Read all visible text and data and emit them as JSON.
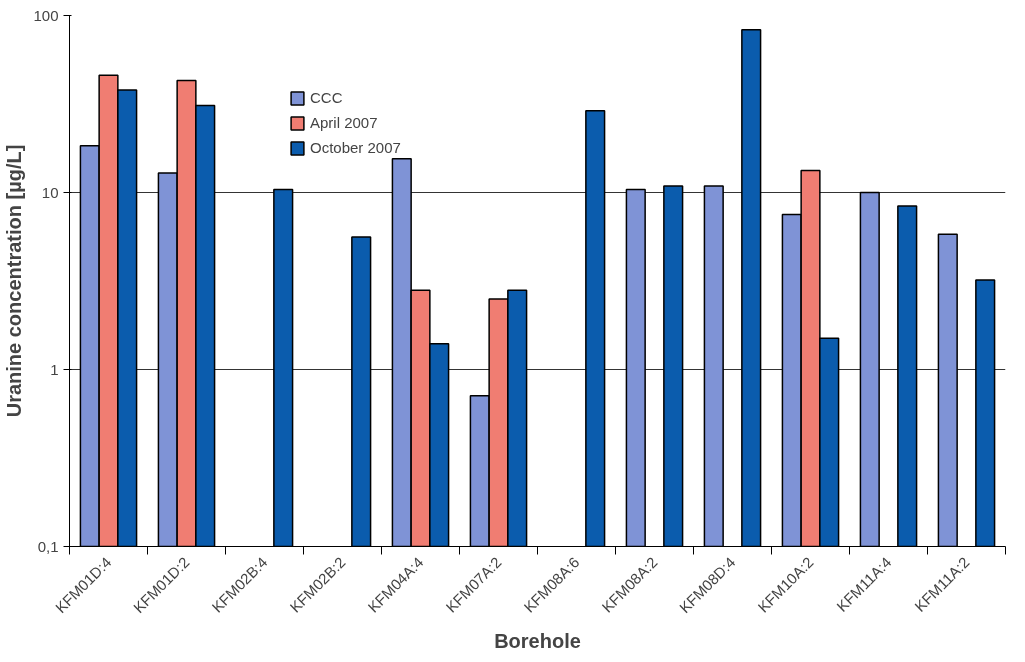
{
  "chart_data": {
    "type": "bar",
    "xlabel": "Borehole",
    "ylabel": "Uranine concentration [µg/L]",
    "categories": [
      "KFM01D:4",
      "KFM01D:2",
      "KFM02B:4",
      "KFM02B:2",
      "KFM04A:4",
      "KFM07A:2",
      "KFM08A:6",
      "KFM08A:2",
      "KFM08D:4",
      "KFM10A:2",
      "KFM11A:4",
      "KFM11A:2"
    ],
    "series": [
      {
        "name": "CCC",
        "color": "#7f93d6",
        "values": [
          18.4,
          12.9,
          null,
          null,
          15.5,
          0.71,
          null,
          10.4,
          10.9,
          7.5,
          10,
          5.8
        ]
      },
      {
        "name": "April 2007",
        "color": "#f07d72",
        "values": [
          46,
          43,
          null,
          null,
          2.8,
          2.5,
          null,
          null,
          null,
          13.3,
          null,
          null
        ]
      },
      {
        "name": "October 2007",
        "color": "#0b5cad",
        "values": [
          38,
          31,
          10.4,
          5.6,
          1.4,
          2.8,
          29,
          10.9,
          83,
          1.5,
          8.4,
          3.2
        ]
      }
    ],
    "log": true,
    "ylim": [
      0.1,
      100
    ],
    "yticks": [
      {
        "value": 0.1,
        "label": "0,1"
      },
      1,
      10,
      100
    ],
    "grid": "y",
    "legend": "top"
  }
}
